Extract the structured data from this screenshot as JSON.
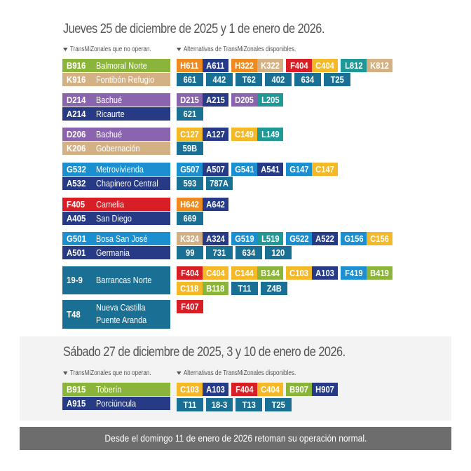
{
  "colors": {
    "green": "#8bb53a",
    "tan": "#d4b184",
    "purple": "#8a64ae",
    "navy": "#263a85",
    "lightblue": "#1b8fcf",
    "red": "#d91f26",
    "teal": "#1a6f94",
    "orange": "#ee8a1f",
    "yellow": "#f5b829",
    "aqua": "#1f9896",
    "gray": "#6d6d6d"
  },
  "section1": {
    "title": "Jueves 25 de diciembre de 2025 y 1 de enero de 2026.",
    "label_left": "TransMiZonales que no operan.",
    "label_right": "Alternativas de TransMiZonales disponibles.",
    "groups": [
      {
        "routes": [
          {
            "code": "B916",
            "name": "Balmoral Norte",
            "color": "green"
          },
          {
            "code": "K916",
            "name": "Fontibón Refugio",
            "color": "tan"
          }
        ],
        "alt_rows": [
          [
            [
              [
                "H611",
                "orange"
              ],
              [
                "A611",
                "navy"
              ]
            ],
            [
              [
                "H322",
                "orange"
              ],
              [
                "K322",
                "tan"
              ]
            ],
            [
              [
                "F404",
                "red"
              ],
              [
                "C404",
                "yellow"
              ]
            ],
            [
              [
                "L812",
                "aqua"
              ],
              [
                "K812",
                "tan"
              ]
            ]
          ],
          [
            [
              [
                "661",
                "teal"
              ]
            ],
            [
              [
                "442",
                "teal"
              ]
            ],
            [
              [
                "T62",
                "teal"
              ]
            ],
            [
              [
                "402",
                "teal"
              ]
            ],
            [
              [
                "634",
                "teal"
              ]
            ],
            [
              [
                "T25",
                "teal"
              ]
            ]
          ]
        ]
      },
      {
        "routes": [
          {
            "code": "D214",
            "name": "Bachué",
            "color": "purple"
          },
          {
            "code": "A214",
            "name": "Ricaurte",
            "color": "navy"
          }
        ],
        "alt_rows": [
          [
            [
              [
                "D215",
                "purple"
              ],
              [
                "A215",
                "navy"
              ]
            ],
            [
              [
                "D205",
                "purple"
              ],
              [
                "L205",
                "aqua"
              ]
            ]
          ],
          [
            [
              [
                "621",
                "teal"
              ]
            ]
          ]
        ]
      },
      {
        "routes": [
          {
            "code": "D206",
            "name": "Bachué",
            "color": "purple"
          },
          {
            "code": "K206",
            "name": "Gobernación",
            "color": "tan"
          }
        ],
        "alt_rows": [
          [
            [
              [
                "C127",
                "yellow"
              ],
              [
                "A127",
                "navy"
              ]
            ],
            [
              [
                "C149",
                "yellow"
              ],
              [
                "L149",
                "aqua"
              ]
            ]
          ],
          [
            [
              [
                "59B",
                "teal"
              ]
            ]
          ]
        ]
      },
      {
        "routes": [
          {
            "code": "G532",
            "name": "Metrovivienda",
            "color": "lightblue"
          },
          {
            "code": "A532",
            "name": "Chapinero Central",
            "color": "navy"
          }
        ],
        "alt_rows": [
          [
            [
              [
                "G507",
                "lightblue"
              ],
              [
                "A507",
                "navy"
              ]
            ],
            [
              [
                "G541",
                "lightblue"
              ],
              [
                "A541",
                "navy"
              ]
            ],
            [
              [
                "G147",
                "lightblue"
              ],
              [
                "C147",
                "yellow"
              ]
            ]
          ],
          [
            [
              [
                "593",
                "teal"
              ]
            ],
            [
              [
                "787A",
                "teal"
              ]
            ]
          ]
        ]
      },
      {
        "routes": [
          {
            "code": "F405",
            "name": "Camelia",
            "color": "red"
          },
          {
            "code": "A405",
            "name": "San Diego",
            "color": "navy"
          }
        ],
        "alt_rows": [
          [
            [
              [
                "H642",
                "orange"
              ],
              [
                "A642",
                "navy"
              ]
            ]
          ],
          [
            [
              [
                "669",
                "teal"
              ]
            ]
          ]
        ]
      },
      {
        "routes": [
          {
            "code": "G501",
            "name": "Bosa San José",
            "color": "lightblue"
          },
          {
            "code": "A501",
            "name": "Germania",
            "color": "navy"
          }
        ],
        "alt_rows": [
          [
            [
              [
                "K324",
                "tan"
              ],
              [
                "A324",
                "navy"
              ]
            ],
            [
              [
                "G519",
                "lightblue"
              ],
              [
                "L519",
                "aqua"
              ]
            ],
            [
              [
                "G522",
                "lightblue"
              ],
              [
                "A522",
                "navy"
              ]
            ],
            [
              [
                "G156",
                "lightblue"
              ],
              [
                "C156",
                "yellow"
              ]
            ]
          ],
          [
            [
              [
                "99",
                "teal"
              ]
            ],
            [
              [
                "731",
                "teal"
              ]
            ],
            [
              [
                "634",
                "teal"
              ]
            ],
            [
              [
                "120",
                "teal"
              ]
            ]
          ]
        ]
      }
    ],
    "big_groups": [
      {
        "code": "19-9",
        "name_lines": [
          "Barrancas Norte"
        ],
        "color": "teal",
        "alt_rows": [
          [
            [
              [
                "F404",
                "red"
              ],
              [
                "C404",
                "yellow"
              ]
            ],
            [
              [
                "C144",
                "yellow"
              ],
              [
                "B144",
                "green"
              ]
            ],
            [
              [
                "C103",
                "yellow"
              ],
              [
                "A103",
                "navy"
              ]
            ],
            [
              [
                "F419",
                "lightblue"
              ],
              [
                "B419",
                "green"
              ]
            ]
          ],
          [
            [
              [
                "C118",
                "yellow"
              ],
              [
                "B118",
                "green"
              ]
            ],
            [
              [
                "T11",
                "teal"
              ]
            ],
            [
              [
                "Z4B",
                "teal"
              ]
            ]
          ]
        ]
      },
      {
        "code": "T48",
        "name_lines": [
          "Nueva Castilla",
          "Puente Aranda"
        ],
        "color": "teal",
        "alt_rows": [
          [
            [
              [
                "F407",
                "red"
              ]
            ]
          ]
        ]
      }
    ]
  },
  "section2": {
    "title": "Sábado 27 de diciembre de 2025, 3 y 10 de enero de 2026.",
    "label_left": "TransMiZonales que no operan.",
    "label_right": "Alternativas de TransMiZonales disponibles.",
    "group": {
      "routes": [
        {
          "code": "B915",
          "name": "Toberín",
          "color": "green"
        },
        {
          "code": "A915",
          "name": "Porciúncula",
          "color": "navy"
        }
      ],
      "alt_rows": [
        [
          [
            [
              "C103",
              "yellow"
            ],
            [
              "A103",
              "navy"
            ]
          ],
          [
            [
              "F404",
              "red"
            ],
            [
              "C404",
              "yellow"
            ]
          ],
          [
            [
              "B907",
              "green"
            ],
            [
              "H907",
              "navy"
            ]
          ]
        ],
        [
          [
            [
              "T11",
              "teal"
            ]
          ],
          [
            [
              "18-3",
              "teal"
            ]
          ],
          [
            [
              "T13",
              "teal"
            ]
          ],
          [
            [
              "T25",
              "teal"
            ]
          ]
        ]
      ]
    }
  },
  "footer": {
    "text": "Desde el domingo 11 de enero de 2026 retoman su operación normal."
  }
}
